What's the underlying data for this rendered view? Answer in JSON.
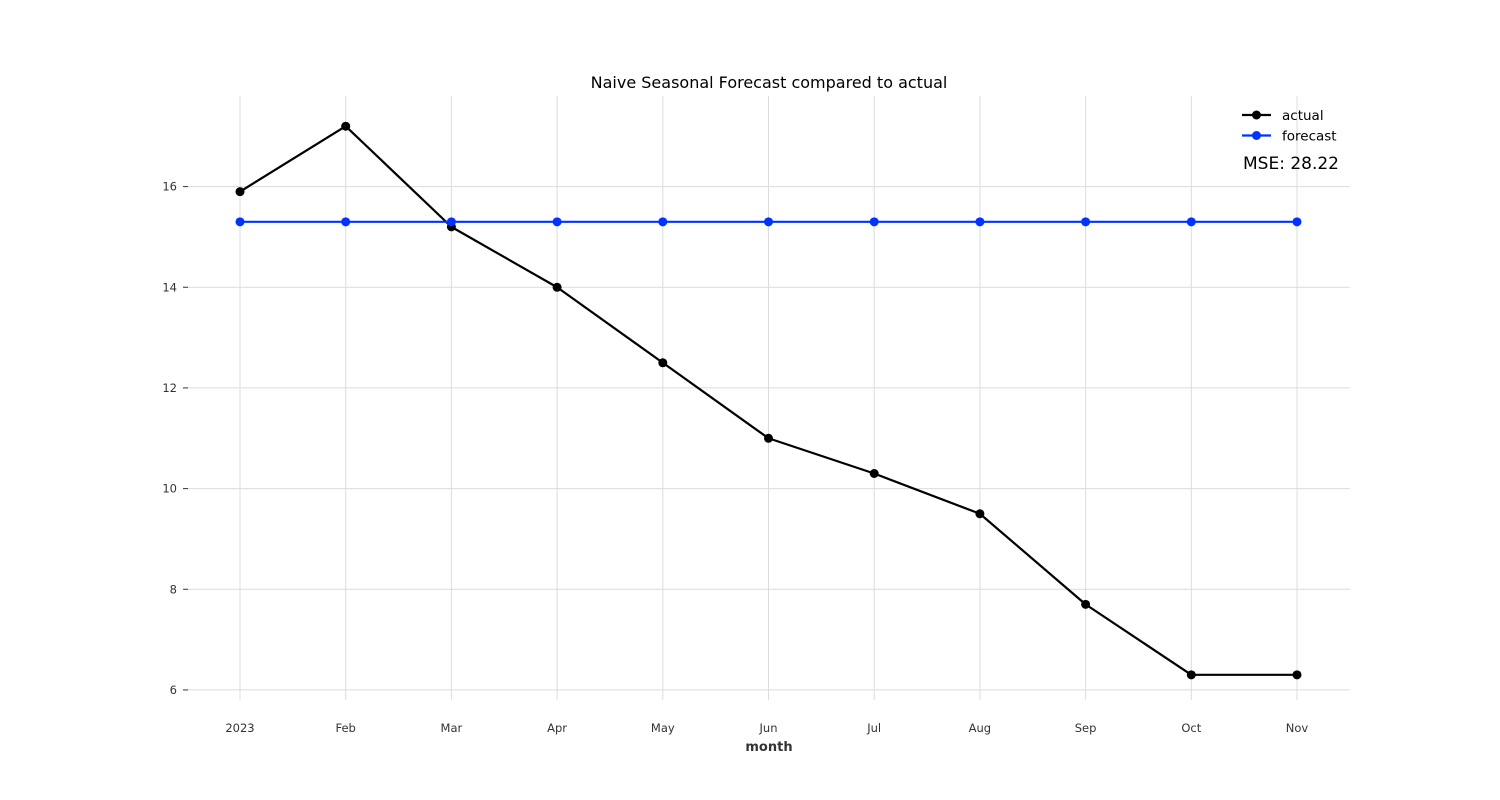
{
  "chart_data": {
    "type": "line",
    "title": "Naive Seasonal Forecast compared to actual",
    "xlabel": "month",
    "ylabel": "",
    "categories": [
      "2023",
      "Feb",
      "Mar",
      "Apr",
      "May",
      "Jun",
      "Jul",
      "Aug",
      "Sep",
      "Oct",
      "Nov"
    ],
    "ylim": [
      5.8,
      17.8
    ],
    "yticks": [
      6,
      8,
      10,
      12,
      14,
      16
    ],
    "grid": true,
    "legend_position": "top-right",
    "series": [
      {
        "name": "actual",
        "color": "#000000",
        "values": [
          15.9,
          17.2,
          15.2,
          14.0,
          12.5,
          11.0,
          10.3,
          9.5,
          7.7,
          6.3,
          6.3
        ]
      },
      {
        "name": "forecast",
        "color": "#0033ff",
        "values": [
          15.3,
          15.3,
          15.3,
          15.3,
          15.3,
          15.3,
          15.3,
          15.3,
          15.3,
          15.3,
          15.3
        ]
      }
    ],
    "annotation": "MSE: 28.22"
  }
}
